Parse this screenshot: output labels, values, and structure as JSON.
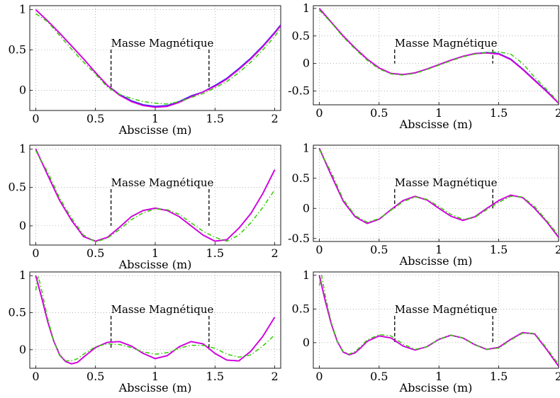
{
  "figure": {
    "colors": {
      "blue": "#2222ee",
      "magenta": "#dd00dd",
      "green": "#33cc00",
      "marker": "#000000"
    }
  },
  "chart_data": [
    {
      "type": "line",
      "xlabel": "Abscisse (m)",
      "ylabel": "",
      "xlim": [
        -0.05,
        2.05
      ],
      "ylim": [
        -0.25,
        1.05
      ],
      "xticks": [
        "0",
        "0.5",
        "1",
        "1.5",
        "2"
      ],
      "yticks": [
        "0",
        "0.5",
        "1"
      ],
      "grid": true,
      "annotation": "Masse Magnétique",
      "annotation_x": [
        0.63,
        1.45
      ],
      "series": [
        {
          "color": "blue",
          "style": "solid",
          "x": [
            0,
            0.1,
            0.2,
            0.3,
            0.4,
            0.5,
            0.6,
            0.7,
            0.8,
            0.9,
            1.0,
            1.1,
            1.2,
            1.3,
            1.4,
            1.5,
            1.6,
            1.7,
            1.8,
            1.9,
            2.0,
            2.05
          ],
          "y": [
            1.0,
            0.86,
            0.71,
            0.55,
            0.39,
            0.22,
            0.06,
            -0.05,
            -0.13,
            -0.18,
            -0.2,
            -0.19,
            -0.14,
            -0.07,
            -0.02,
            0.06,
            0.15,
            0.27,
            0.4,
            0.55,
            0.72,
            0.81
          ]
        },
        {
          "color": "magenta",
          "style": "solid",
          "x": [
            0,
            0.1,
            0.2,
            0.3,
            0.4,
            0.5,
            0.6,
            0.7,
            0.8,
            0.9,
            1.0,
            1.1,
            1.2,
            1.3,
            1.4,
            1.5,
            1.6,
            1.7,
            1.8,
            1.9,
            2.0,
            2.05
          ],
          "y": [
            1.0,
            0.86,
            0.71,
            0.55,
            0.39,
            0.22,
            0.06,
            -0.06,
            -0.14,
            -0.19,
            -0.21,
            -0.2,
            -0.15,
            -0.08,
            -0.02,
            0.05,
            0.14,
            0.26,
            0.39,
            0.54,
            0.71,
            0.8
          ]
        },
        {
          "color": "green",
          "style": "dashdot",
          "x": [
            0,
            0.1,
            0.2,
            0.3,
            0.4,
            0.5,
            0.6,
            0.7,
            0.8,
            0.9,
            1.0,
            1.1,
            1.2,
            1.3,
            1.4,
            1.5,
            1.6,
            1.7,
            1.8,
            1.9,
            2.0,
            2.05
          ],
          "y": [
            0.95,
            0.85,
            0.68,
            0.51,
            0.35,
            0.2,
            0.04,
            -0.05,
            -0.1,
            -0.14,
            -0.16,
            -0.17,
            -0.14,
            -0.09,
            -0.04,
            0.03,
            0.11,
            0.22,
            0.35,
            0.5,
            0.67,
            0.77
          ]
        }
      ]
    },
    {
      "type": "line",
      "xlabel": "Abscisse (m)",
      "ylabel": "",
      "xlim": [
        -0.05,
        2.0
      ],
      "ylim": [
        -0.75,
        1.05
      ],
      "xticks": [
        "0",
        "0.5",
        "1",
        "1.5",
        "2"
      ],
      "yticks": [
        "-0.5",
        "0",
        "0.5",
        "1"
      ],
      "grid": true,
      "annotation": "Masse Magnétique",
      "annotation_x": [
        0.63,
        1.45
      ],
      "series": [
        {
          "color": "blue",
          "style": "solid",
          "x": [
            0,
            0.1,
            0.2,
            0.3,
            0.4,
            0.5,
            0.6,
            0.7,
            0.8,
            0.9,
            1.0,
            1.1,
            1.2,
            1.3,
            1.4,
            1.5,
            1.6,
            1.7,
            1.8,
            1.9,
            2.0
          ],
          "y": [
            1.0,
            0.75,
            0.5,
            0.28,
            0.08,
            -0.08,
            -0.18,
            -0.2,
            -0.17,
            -0.1,
            -0.02,
            0.06,
            0.13,
            0.18,
            0.2,
            0.18,
            0.08,
            -0.1,
            -0.3,
            -0.5,
            -0.72
          ]
        },
        {
          "color": "magenta",
          "style": "solid",
          "x": [
            0,
            0.1,
            0.2,
            0.3,
            0.4,
            0.5,
            0.6,
            0.7,
            0.8,
            0.9,
            1.0,
            1.1,
            1.2,
            1.3,
            1.4,
            1.5,
            1.6,
            1.7,
            1.8,
            1.9,
            2.0
          ],
          "y": [
            1.0,
            0.75,
            0.5,
            0.28,
            0.08,
            -0.08,
            -0.18,
            -0.2,
            -0.17,
            -0.1,
            -0.02,
            0.06,
            0.13,
            0.18,
            0.19,
            0.17,
            0.07,
            -0.11,
            -0.31,
            -0.51,
            -0.72
          ]
        },
        {
          "color": "green",
          "style": "dashdot",
          "x": [
            0,
            0.1,
            0.2,
            0.3,
            0.4,
            0.5,
            0.6,
            0.7,
            0.8,
            0.9,
            1.0,
            1.1,
            1.2,
            1.3,
            1.4,
            1.5,
            1.6,
            1.7,
            1.8,
            1.9,
            2.0
          ],
          "y": [
            0.97,
            0.74,
            0.48,
            0.26,
            0.06,
            -0.1,
            -0.19,
            -0.21,
            -0.18,
            -0.11,
            -0.03,
            0.05,
            0.12,
            0.17,
            0.2,
            0.21,
            0.17,
            0.0,
            -0.25,
            -0.47,
            -0.7
          ]
        }
      ]
    },
    {
      "type": "line",
      "xlabel": "Abscisse (m)",
      "ylabel": "",
      "xlim": [
        -0.05,
        2.05
      ],
      "ylim": [
        -0.25,
        1.05
      ],
      "xticks": [
        "0",
        "0.5",
        "1",
        "1.5",
        "2"
      ],
      "yticks": [
        "0",
        "0.5",
        "1"
      ],
      "grid": true,
      "annotation": "Masse Magnétique",
      "annotation_x": [
        0.63,
        1.45
      ],
      "series": [
        {
          "color": "blue",
          "style": "solid",
          "x": [
            0,
            0.1,
            0.2,
            0.3,
            0.4,
            0.5,
            0.6,
            0.7,
            0.8,
            0.9,
            1.0,
            1.1,
            1.2,
            1.3,
            1.4,
            1.5,
            1.6,
            1.7,
            1.8,
            1.9,
            2.0
          ],
          "y": [
            1.0,
            0.66,
            0.33,
            0.07,
            -0.14,
            -0.2,
            -0.15,
            -0.02,
            0.12,
            0.2,
            0.23,
            0.2,
            0.12,
            0.0,
            -0.12,
            -0.2,
            -0.18,
            -0.03,
            0.16,
            0.42,
            0.73
          ]
        },
        {
          "color": "magenta",
          "style": "solid",
          "x": [
            0,
            0.1,
            0.2,
            0.3,
            0.4,
            0.5,
            0.6,
            0.7,
            0.8,
            0.9,
            1.0,
            1.1,
            1.2,
            1.3,
            1.4,
            1.5,
            1.6,
            1.7,
            1.8,
            1.9,
            2.0
          ],
          "y": [
            1.0,
            0.66,
            0.33,
            0.07,
            -0.14,
            -0.2,
            -0.15,
            -0.02,
            0.12,
            0.2,
            0.23,
            0.2,
            0.12,
            0.0,
            -0.12,
            -0.2,
            -0.18,
            -0.03,
            0.16,
            0.42,
            0.73
          ]
        },
        {
          "color": "green",
          "style": "dashdot",
          "x": [
            0,
            0.1,
            0.2,
            0.3,
            0.4,
            0.5,
            0.6,
            0.7,
            0.8,
            0.9,
            1.0,
            1.1,
            1.2,
            1.3,
            1.4,
            1.5,
            1.6,
            1.7,
            1.8,
            1.9,
            2.0
          ],
          "y": [
            0.98,
            0.7,
            0.36,
            0.1,
            -0.12,
            -0.21,
            -0.16,
            -0.05,
            0.08,
            0.17,
            0.22,
            0.21,
            0.15,
            0.04,
            -0.07,
            -0.15,
            -0.2,
            -0.12,
            0.04,
            0.24,
            0.47
          ]
        }
      ]
    },
    {
      "type": "line",
      "xlabel": "Abscisse (m)",
      "ylabel": "",
      "xlim": [
        -0.05,
        2.0
      ],
      "ylim": [
        -0.55,
        1.05
      ],
      "xticks": [
        "0",
        "0.5",
        "1",
        "1.5",
        "2"
      ],
      "yticks": [
        "-0.5",
        "0",
        "0.5",
        "1"
      ],
      "grid": true,
      "annotation": "Masse Magnétique",
      "annotation_x": [
        0.63,
        1.45
      ],
      "series": [
        {
          "color": "blue",
          "style": "solid",
          "x": [
            0,
            0.1,
            0.2,
            0.3,
            0.4,
            0.5,
            0.6,
            0.7,
            0.8,
            0.9,
            1.0,
            1.1,
            1.2,
            1.3,
            1.4,
            1.5,
            1.6,
            1.7,
            1.8,
            1.9,
            2.0
          ],
          "y": [
            1.0,
            0.55,
            0.12,
            -0.14,
            -0.25,
            -0.18,
            -0.02,
            0.13,
            0.2,
            0.14,
            0.0,
            -0.13,
            -0.2,
            -0.14,
            0.0,
            0.13,
            0.22,
            0.18,
            0.0,
            -0.22,
            -0.48
          ]
        },
        {
          "color": "magenta",
          "style": "solid",
          "x": [
            0,
            0.1,
            0.2,
            0.3,
            0.4,
            0.5,
            0.6,
            0.7,
            0.8,
            0.9,
            1.0,
            1.1,
            1.2,
            1.3,
            1.4,
            1.5,
            1.6,
            1.7,
            1.8,
            1.9,
            2.0
          ],
          "y": [
            1.0,
            0.55,
            0.12,
            -0.14,
            -0.25,
            -0.18,
            -0.02,
            0.13,
            0.2,
            0.14,
            0.0,
            -0.13,
            -0.2,
            -0.14,
            0.0,
            0.13,
            0.22,
            0.18,
            0.0,
            -0.22,
            -0.48
          ]
        },
        {
          "color": "green",
          "style": "dashdot",
          "x": [
            0,
            0.1,
            0.2,
            0.3,
            0.4,
            0.5,
            0.6,
            0.7,
            0.8,
            0.9,
            1.0,
            1.1,
            1.2,
            1.3,
            1.4,
            1.5,
            1.6,
            1.7,
            1.8,
            1.9,
            2.0
          ],
          "y": [
            0.98,
            0.6,
            0.15,
            -0.12,
            -0.23,
            -0.17,
            -0.03,
            0.11,
            0.19,
            0.15,
            0.03,
            -0.1,
            -0.18,
            -0.15,
            -0.02,
            0.1,
            0.2,
            0.19,
            0.03,
            -0.2,
            -0.45
          ]
        }
      ]
    },
    {
      "type": "line",
      "xlabel": "Abscisse (m)",
      "ylabel": "",
      "xlim": [
        -0.05,
        2.05
      ],
      "ylim": [
        -0.25,
        1.05
      ],
      "xticks": [
        "0",
        "0.5",
        "1",
        "1.5",
        "2"
      ],
      "yticks": [
        "0",
        "0.5",
        "1"
      ],
      "grid": true,
      "annotation": "Masse Magnétique",
      "annotation_x": [
        0.63,
        1.45
      ],
      "series": [
        {
          "color": "blue",
          "style": "solid",
          "x": [
            0,
            0.05,
            0.1,
            0.15,
            0.2,
            0.25,
            0.3,
            0.35,
            0.4,
            0.5,
            0.6,
            0.7,
            0.8,
            0.9,
            1.0,
            1.1,
            1.2,
            1.3,
            1.4,
            1.5,
            1.6,
            1.7,
            1.8,
            1.9,
            2.0
          ],
          "y": [
            1.0,
            0.7,
            0.38,
            0.12,
            -0.07,
            -0.16,
            -0.19,
            -0.17,
            -0.1,
            0.03,
            0.1,
            0.11,
            0.05,
            -0.05,
            -0.12,
            -0.08,
            0.04,
            0.11,
            0.08,
            -0.05,
            -0.14,
            -0.15,
            -0.02,
            0.18,
            0.44
          ]
        },
        {
          "color": "magenta",
          "style": "solid",
          "x": [
            0,
            0.05,
            0.1,
            0.15,
            0.2,
            0.25,
            0.3,
            0.35,
            0.4,
            0.5,
            0.6,
            0.7,
            0.8,
            0.9,
            1.0,
            1.1,
            1.2,
            1.3,
            1.4,
            1.5,
            1.6,
            1.7,
            1.8,
            1.9,
            2.0
          ],
          "y": [
            1.0,
            0.7,
            0.38,
            0.12,
            -0.07,
            -0.16,
            -0.19,
            -0.17,
            -0.1,
            0.03,
            0.1,
            0.11,
            0.05,
            -0.05,
            -0.12,
            -0.08,
            0.04,
            0.11,
            0.08,
            -0.05,
            -0.14,
            -0.15,
            -0.02,
            0.18,
            0.44
          ]
        },
        {
          "color": "green",
          "style": "dashdot",
          "x": [
            0,
            0.02,
            0.05,
            0.1,
            0.15,
            0.2,
            0.25,
            0.3,
            0.35,
            0.4,
            0.5,
            0.6,
            0.7,
            0.8,
            0.9,
            1.0,
            1.1,
            1.2,
            1.3,
            1.4,
            1.5,
            1.6,
            1.7,
            1.8,
            1.9,
            2.0
          ],
          "y": [
            0.8,
            1.0,
            0.8,
            0.42,
            0.12,
            -0.08,
            -0.15,
            -0.15,
            -0.12,
            -0.06,
            0.04,
            0.08,
            0.07,
            0.03,
            -0.03,
            -0.06,
            -0.04,
            0.02,
            0.06,
            0.06,
            0.02,
            -0.06,
            -0.1,
            -0.07,
            0.05,
            0.2
          ]
        }
      ]
    },
    {
      "type": "line",
      "xlabel": "Abscisse (m)",
      "ylabel": "",
      "xlim": [
        -0.05,
        2.0
      ],
      "ylim": [
        -0.38,
        1.05
      ],
      "xticks": [
        "0",
        "0.5",
        "1",
        "1.5",
        "2"
      ],
      "yticks": [
        "0",
        "0.5",
        "1"
      ],
      "grid": true,
      "annotation": "Masse Magnétique",
      "annotation_x": [
        0.63,
        1.45
      ],
      "series": [
        {
          "color": "blue",
          "style": "solid",
          "x": [
            0,
            0.05,
            0.1,
            0.15,
            0.2,
            0.25,
            0.3,
            0.35,
            0.4,
            0.5,
            0.6,
            0.7,
            0.8,
            0.9,
            1.0,
            1.1,
            1.2,
            1.3,
            1.4,
            1.5,
            1.6,
            1.7,
            1.8,
            1.9,
            2.0
          ],
          "y": [
            1.0,
            0.62,
            0.28,
            0.02,
            -0.14,
            -0.18,
            -0.15,
            -0.07,
            0.02,
            0.1,
            0.07,
            -0.05,
            -0.11,
            -0.06,
            0.05,
            0.11,
            0.07,
            -0.03,
            -0.1,
            -0.07,
            0.05,
            0.15,
            0.13,
            -0.1,
            -0.35
          ]
        },
        {
          "color": "magenta",
          "style": "solid",
          "x": [
            0,
            0.05,
            0.1,
            0.15,
            0.2,
            0.25,
            0.3,
            0.35,
            0.4,
            0.5,
            0.6,
            0.7,
            0.8,
            0.9,
            1.0,
            1.1,
            1.2,
            1.3,
            1.4,
            1.5,
            1.6,
            1.7,
            1.8,
            1.9,
            2.0
          ],
          "y": [
            1.0,
            0.62,
            0.28,
            0.02,
            -0.14,
            -0.18,
            -0.15,
            -0.07,
            0.02,
            0.1,
            0.07,
            -0.05,
            -0.11,
            -0.06,
            0.05,
            0.11,
            0.07,
            -0.03,
            -0.1,
            -0.07,
            0.05,
            0.15,
            0.13,
            -0.1,
            -0.35
          ]
        },
        {
          "color": "green",
          "style": "dashdot",
          "x": [
            0,
            0.02,
            0.05,
            0.1,
            0.15,
            0.2,
            0.25,
            0.3,
            0.35,
            0.4,
            0.5,
            0.6,
            0.7,
            0.8,
            0.9,
            1.0,
            1.1,
            1.2,
            1.3,
            1.4,
            1.5,
            1.6,
            1.7,
            1.8,
            1.9,
            2.0
          ],
          "y": [
            0.85,
            1.0,
            0.7,
            0.3,
            0.02,
            -0.13,
            -0.17,
            -0.13,
            -0.05,
            0.04,
            0.12,
            0.1,
            -0.02,
            -0.1,
            -0.06,
            0.05,
            0.11,
            0.07,
            -0.03,
            -0.1,
            -0.08,
            0.04,
            0.14,
            0.14,
            -0.08,
            -0.32
          ]
        }
      ]
    }
  ]
}
